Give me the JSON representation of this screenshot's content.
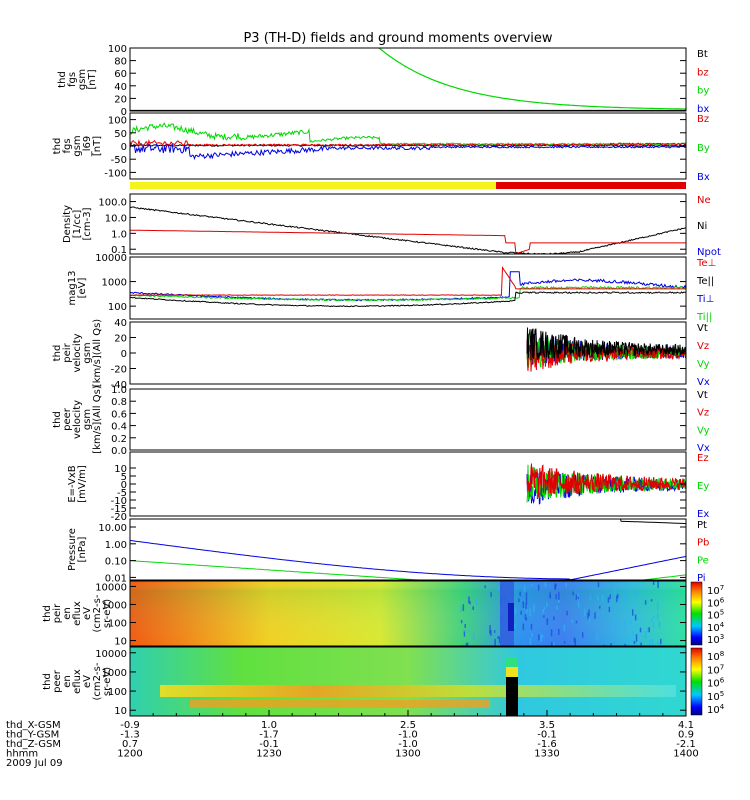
{
  "title": "P3 (TH-D) fields and ground moments overview",
  "colors": {
    "black": "#000000",
    "red": "#e00000",
    "green": "#00d800",
    "blue": "#0000e0",
    "yellow": "#f4f41c"
  },
  "chart_data": [
    {
      "type": "line",
      "id": "fgs",
      "ylabel_lines": [
        "thd",
        "fgs",
        "gsm",
        "[nT]"
      ],
      "ylim": [
        0,
        100
      ],
      "ticks": [
        "100",
        "80",
        "60",
        "40",
        "20",
        "0"
      ],
      "legend": [
        {
          "label": "Bt",
          "color": "#000000"
        },
        {
          "label": "bz",
          "color": "#e00000"
        },
        {
          "label": "by",
          "color": "#00d800"
        },
        {
          "label": "bx",
          "color": "#0000e0"
        }
      ]
    },
    {
      "type": "line",
      "id": "fgs_mag",
      "ylabel_lines": [
        "thd",
        "fgs",
        "gsm",
        "_l69",
        "[nT]"
      ],
      "ylim": [
        -125,
        125
      ],
      "ticks": [
        "100",
        "50",
        "0",
        "-50",
        "-100"
      ],
      "legend": [
        {
          "label": "Bz",
          "color": "#e00000"
        },
        {
          "label": "By",
          "color": "#00d800"
        },
        {
          "label": "Bx",
          "color": "#0000e0"
        }
      ]
    },
    {
      "type": "line",
      "id": "density",
      "ylabel_lines": [
        "Density",
        "[1/cc]",
        "[cm-3]"
      ],
      "scale": "log",
      "ylim": [
        0.05,
        300
      ],
      "ticks": [
        "100.0",
        "10.0",
        "1.0",
        "0.1"
      ],
      "legend": [
        {
          "label": "Ne",
          "color": "#e00000"
        },
        {
          "label": "Ni",
          "color": "#000000"
        },
        {
          "label": "Npot",
          "color": "#0000e0"
        }
      ]
    },
    {
      "type": "line",
      "id": "temp",
      "ylabel_lines": [
        "mag13",
        "[eV]"
      ],
      "scale": "log",
      "ylim": [
        30,
        10000
      ],
      "ticks": [
        "10000",
        "1000",
        "100"
      ],
      "legend": [
        {
          "label": "Te⊥",
          "color": "#e00000"
        },
        {
          "label": "Te||",
          "color": "#000000"
        },
        {
          "label": "Ti⊥",
          "color": "#0000e0"
        },
        {
          "label": "Ti||",
          "color": "#00d800"
        }
      ]
    },
    {
      "type": "line",
      "id": "peir_vel",
      "ylabel_lines": [
        "thd",
        "peir",
        "velocity",
        "gsm",
        "[km/s](All Qs)"
      ],
      "ylim": [
        -40,
        40
      ],
      "ticks": [
        "40",
        "20",
        "0",
        "-20",
        "-40"
      ],
      "legend": [
        {
          "label": "Vt",
          "color": "#000000"
        },
        {
          "label": "Vz",
          "color": "#e00000"
        },
        {
          "label": "Vy",
          "color": "#00d800"
        },
        {
          "label": "Vx",
          "color": "#0000e0"
        }
      ]
    },
    {
      "type": "line",
      "id": "peer_vel",
      "ylabel_lines": [
        "thd",
        "peer",
        "velocity",
        "gsm",
        "[km/s](All Qs)"
      ],
      "ylim": [
        0,
        1
      ],
      "ticks": [
        "1.0",
        "0.8",
        "0.6",
        "0.4",
        "0.2",
        "0.0"
      ],
      "legend": [
        {
          "label": "Vt",
          "color": "#000000"
        },
        {
          "label": "Vz",
          "color": "#e00000"
        },
        {
          "label": "Vy",
          "color": "#00d800"
        },
        {
          "label": "Vx",
          "color": "#0000e0"
        }
      ]
    },
    {
      "type": "line",
      "id": "efield",
      "ylabel_lines": [
        "E=-VxB",
        "[mV/m]"
      ],
      "ylim": [
        -20,
        20
      ],
      "ticks": [
        "10",
        "5",
        "0",
        "-5",
        "-10",
        "-15",
        "-20"
      ],
      "legend": [
        {
          "label": "Ez",
          "color": "#e00000"
        },
        {
          "label": "Ey",
          "color": "#00d800"
        },
        {
          "label": "Ex",
          "color": "#0000e0"
        }
      ]
    },
    {
      "type": "line",
      "id": "pressure",
      "ylabel_lines": [
        "Pressure",
        "[nPa]"
      ],
      "scale": "log",
      "ylim": [
        0.007,
        30
      ],
      "ticks": [
        "10.00",
        "1.00",
        "0.10",
        "0.01"
      ],
      "legend": [
        {
          "label": "Pt",
          "color": "#000000"
        },
        {
          "label": "Pb",
          "color": "#e00000"
        },
        {
          "label": "Pe",
          "color": "#00d800"
        },
        {
          "label": "Pi",
          "color": "#0000e0"
        }
      ]
    },
    {
      "type": "heatmap",
      "id": "peir_spec",
      "ylabel_lines": [
        "thd",
        "peir",
        "en",
        "eflux",
        "eV",
        "(cm2-s-",
        "sr-eV)"
      ],
      "scale": "log",
      "ylim": [
        5,
        20000
      ],
      "ticks": [
        "10000",
        "1000",
        "100",
        "10"
      ],
      "colorbar": [
        "10^7",
        "10^6",
        "10^5",
        "10^4",
        "10^3"
      ]
    },
    {
      "type": "heatmap",
      "id": "peer_spec",
      "ylabel_lines": [
        "thd",
        "peer",
        "en",
        "eflux",
        "eV",
        "(cm2-s-",
        "sr-eV)"
      ],
      "scale": "log",
      "ylim": [
        5,
        20000
      ],
      "ticks": [
        "10000",
        "1000",
        "100",
        "10"
      ],
      "colorbar": [
        "10^8",
        "10^7",
        "10^6",
        "10^5",
        "10^4"
      ]
    }
  ],
  "xaxis": {
    "rows": [
      {
        "label": "thd_X-GSM",
        "values": [
          "-0.9",
          "1.0",
          "2.5",
          "3.5",
          "4.1"
        ]
      },
      {
        "label": "thd_Y-GSM",
        "values": [
          "-1.3",
          "-1.7",
          "-1.0",
          "-0.1",
          "0.9"
        ]
      },
      {
        "label": "thd_Z-GSM",
        "values": [
          "0.7",
          "-0.1",
          "-1.0",
          "-1.6",
          "-2.1"
        ]
      },
      {
        "label": "hhmm",
        "values": [
          "1200",
          "1230",
          "1300",
          "1330",
          "1400"
        ]
      }
    ],
    "date": "2009 Jul 09"
  }
}
